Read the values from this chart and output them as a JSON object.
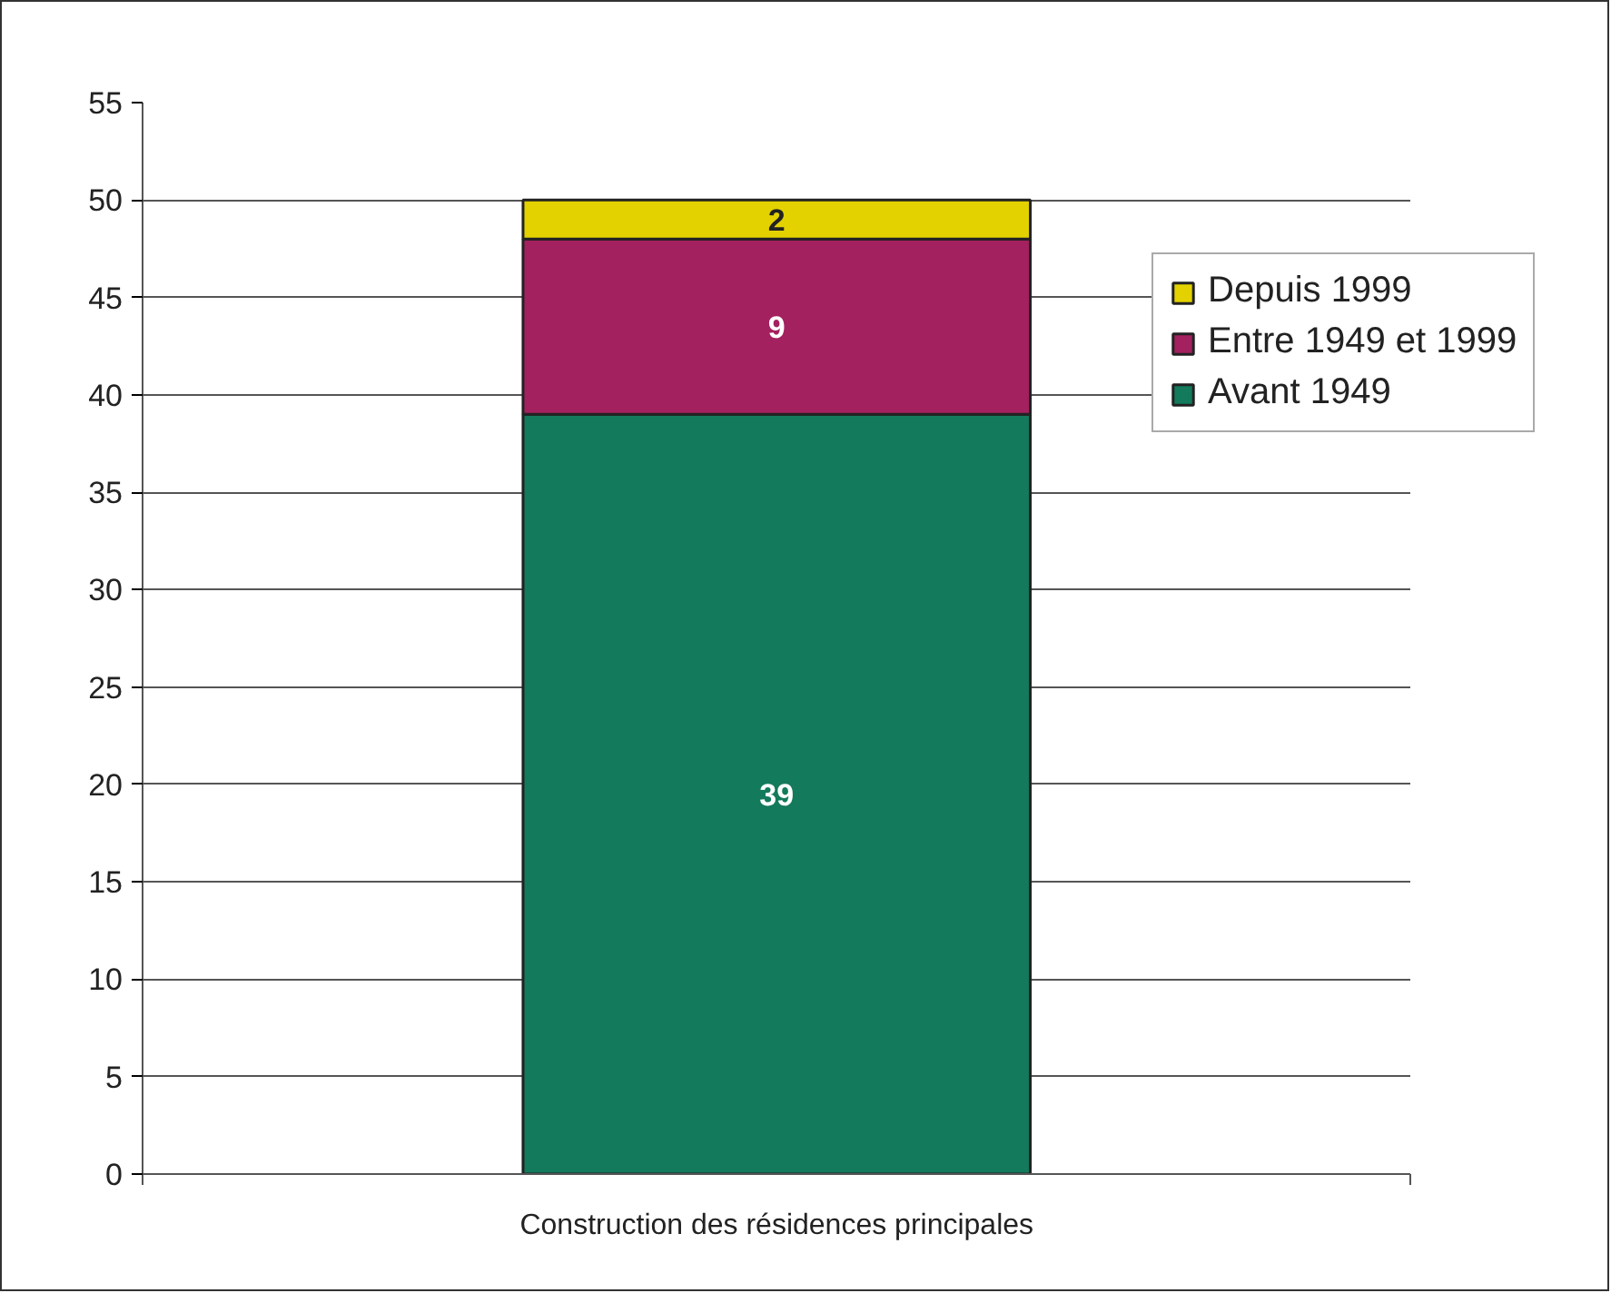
{
  "chart_data": {
    "type": "bar",
    "stacked": true,
    "categories": [
      "Construction des résidences principales"
    ],
    "series": [
      {
        "name": "Avant 1949",
        "color": "#137a5c",
        "values": [
          39
        ]
      },
      {
        "name": "Entre 1949 et 1999",
        "color": "#a3215e",
        "values": [
          9
        ]
      },
      {
        "name": "Depuis 1999",
        "color": "#e3d200",
        "values": [
          2
        ]
      }
    ],
    "ylim": [
      0,
      55
    ],
    "yticks": [
      0,
      5,
      10,
      15,
      20,
      25,
      30,
      35,
      40,
      45,
      50,
      55
    ],
    "grid": "y",
    "legend": "right",
    "data_labels": true
  }
}
